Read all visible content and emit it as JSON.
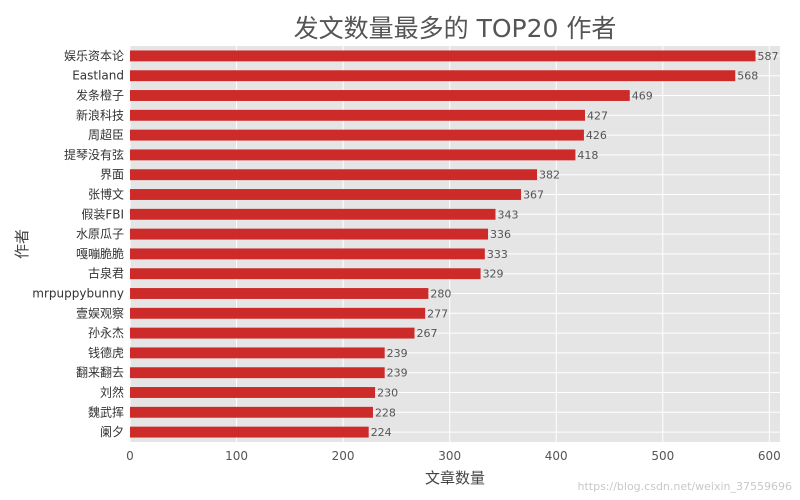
{
  "chart_data": {
    "type": "bar",
    "orientation": "horizontal",
    "title": "发文数量最多的 TOP20 作者",
    "xlabel": "文章数量",
    "ylabel": "作者",
    "categories": [
      "娱乐资本论",
      "Eastland",
      "发条橙子",
      "新浪科技",
      "周超臣",
      "提琴没有弦",
      "界面",
      "张博文",
      "假装FBI",
      "水原瓜子",
      "嘎嘣脆脆",
      "古泉君",
      "mrpuppybunny",
      "壹娱观察",
      "孙永杰",
      "钱德虎",
      "翻来翻去",
      "刘然",
      "魏武挥",
      "阑夕"
    ],
    "values": [
      587,
      568,
      469,
      427,
      426,
      418,
      382,
      367,
      343,
      336,
      333,
      329,
      280,
      277,
      267,
      239,
      239,
      230,
      228,
      224
    ],
    "xlim": [
      0,
      610
    ],
    "xticks": [
      0,
      100,
      200,
      300,
      400,
      500,
      600
    ],
    "grid": true,
    "bar_color": "#cd2a2a",
    "background_color": "#e5e5e5"
  },
  "watermark": "https://blog.csdn.net/weixin_37559696"
}
